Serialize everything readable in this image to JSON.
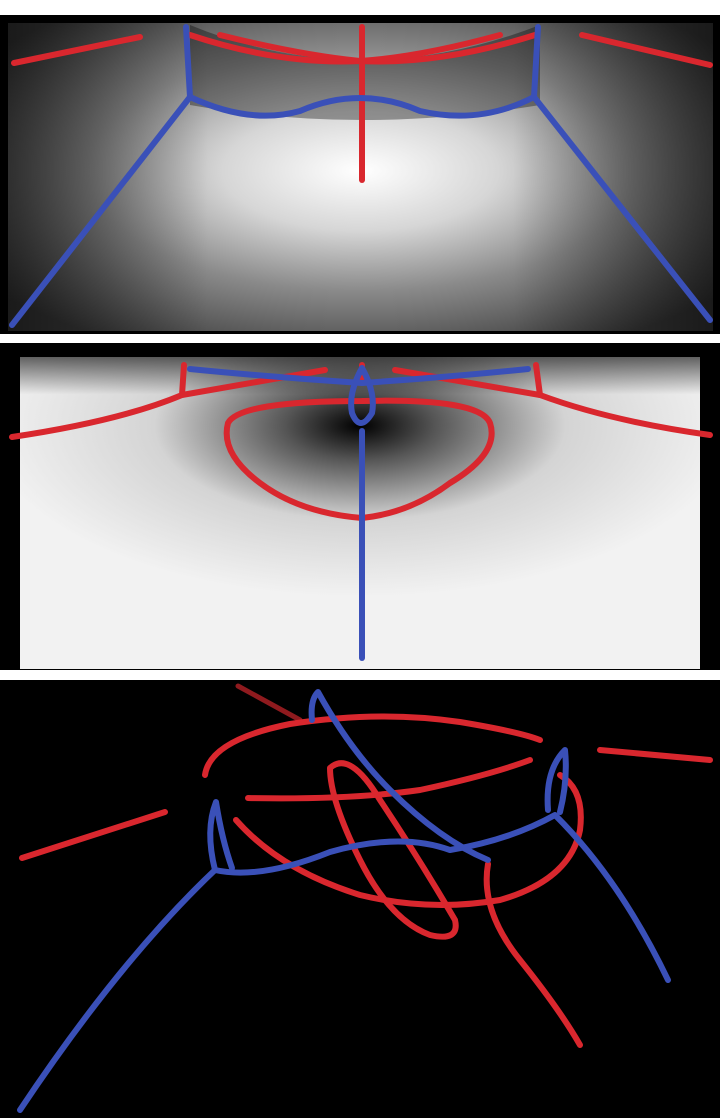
{
  "figure": {
    "panels": [
      {
        "id": "top",
        "description_visible_text": ""
      },
      {
        "id": "middle",
        "description_visible_text": ""
      },
      {
        "id": "bottom",
        "description_visible_text": ""
      }
    ]
  },
  "colors": {
    "red_curve": "#d9272e",
    "blue_curve": "#3a50b8",
    "panel_background_dark": "#000000",
    "frame": "#ffffff"
  }
}
